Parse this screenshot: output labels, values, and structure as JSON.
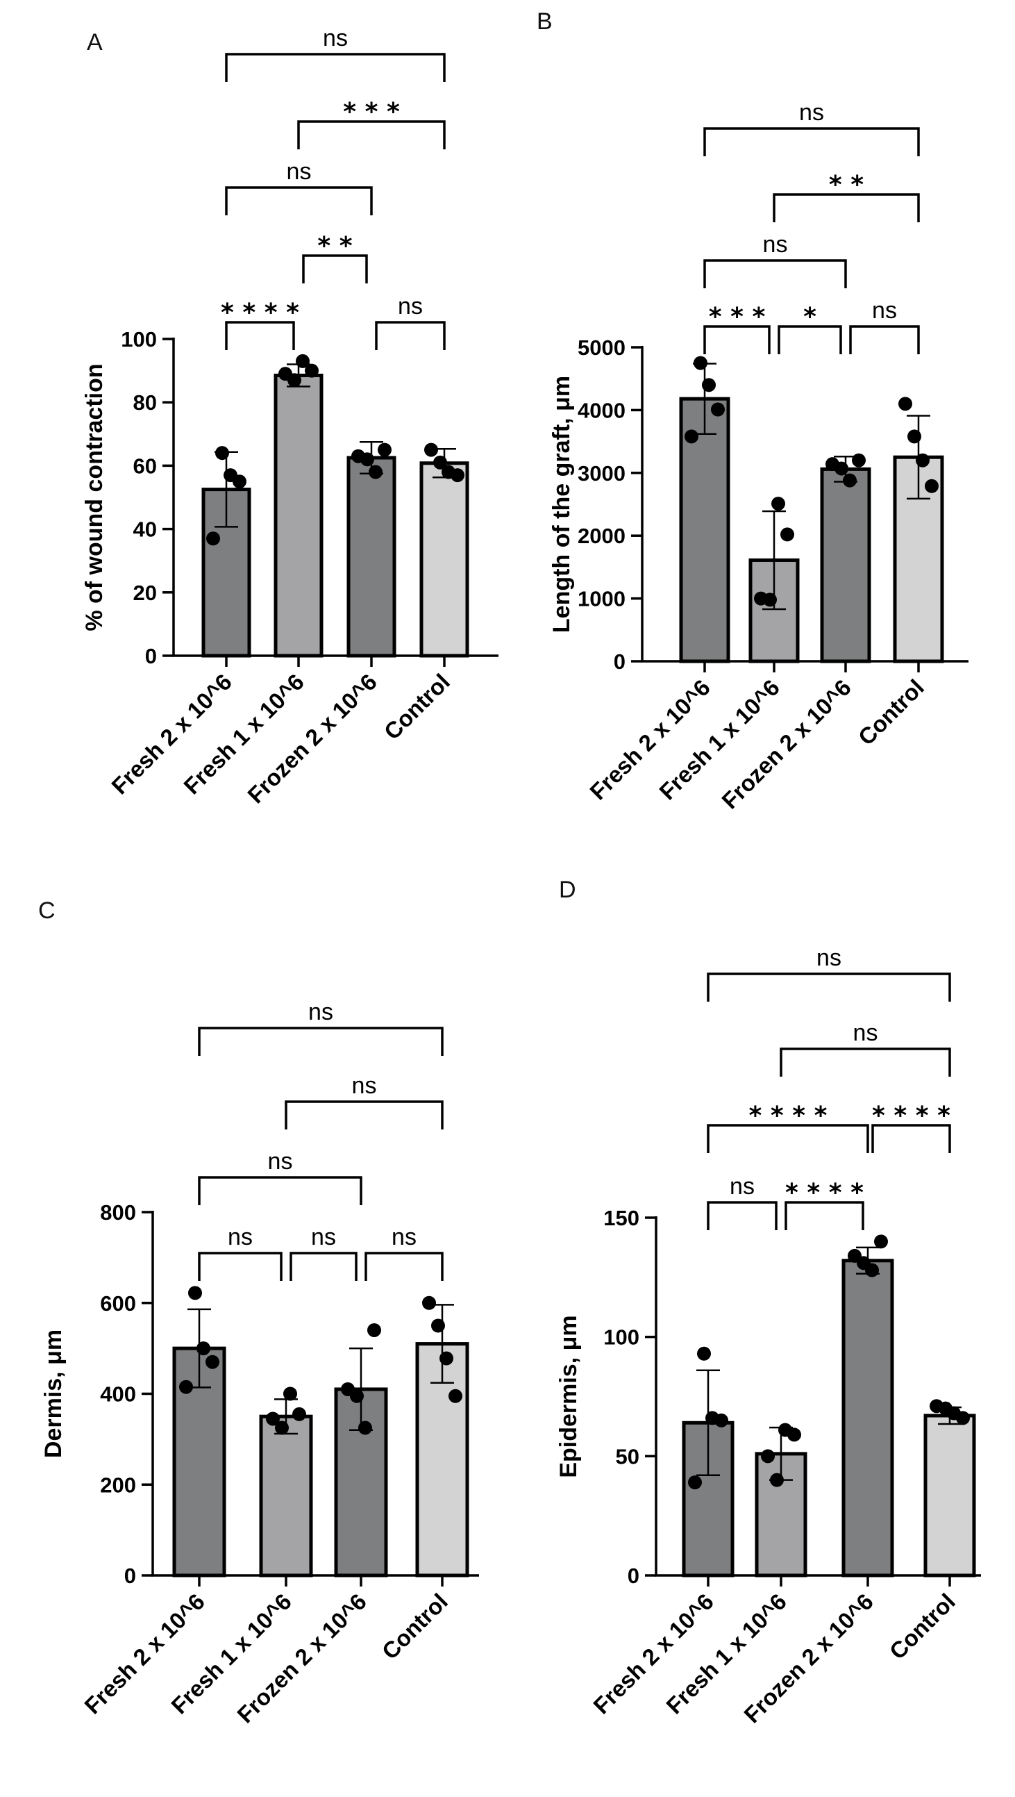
{
  "chart_data": [
    {
      "panel": "A",
      "type": "bar",
      "categories": [
        "Fresh 2 x 10^6",
        "Fresh 1 x 10^6",
        "Frozen 2 x 10^6",
        "Control"
      ],
      "values": [
        52.5,
        88.5,
        62.5,
        60.8
      ],
      "errors": [
        11.8,
        3.5,
        5.0,
        4.5
      ],
      "points": [
        [
          37,
          55,
          57,
          64
        ],
        [
          87,
          89,
          90,
          93
        ],
        [
          58,
          62,
          63,
          65
        ],
        [
          57,
          58,
          61,
          65
        ]
      ],
      "bar_colors": [
        "#7e7f80",
        "#a4a4a7",
        "#7e7f80",
        "#d3d3d3"
      ],
      "ylabel": "% of wound contraction",
      "ylim": [
        0,
        100
      ],
      "yticks": [
        0,
        20,
        40,
        60,
        80,
        100
      ],
      "comparisons": [
        {
          "from": 0,
          "to": 3,
          "label": "ns"
        },
        {
          "from": 1,
          "to": 3,
          "label": "***"
        },
        {
          "from": 0,
          "to": 2,
          "label": "ns"
        },
        {
          "from": 1,
          "to": 2,
          "label": "**"
        },
        {
          "from": 0,
          "to": 1,
          "label": "****"
        },
        {
          "from": 2,
          "to": 3,
          "label": "ns"
        }
      ]
    },
    {
      "panel": "B",
      "type": "bar",
      "categories": [
        "Fresh 2 x 10^6",
        "Fresh 1 x 10^6",
        "Frozen 2 x 10^6",
        "Control"
      ],
      "values": [
        4180,
        1610,
        3060,
        3250
      ],
      "errors": [
        560,
        780,
        200,
        660
      ],
      "points": [
        [
          3580,
          4010,
          4400,
          4750
        ],
        [
          980,
          1000,
          2020,
          2510
        ],
        [
          2880,
          3070,
          3140,
          3200
        ],
        [
          2790,
          3200,
          3580,
          4100
        ]
      ],
      "bar_colors": [
        "#7e7f80",
        "#a4a4a7",
        "#7e7f80",
        "#d3d3d3"
      ],
      "ylabel": "Length of the graft, μm",
      "ylim": [
        0,
        5000
      ],
      "yticks": [
        0,
        1000,
        2000,
        3000,
        4000,
        5000
      ],
      "comparisons": [
        {
          "from": 0,
          "to": 3,
          "label": "ns"
        },
        {
          "from": 1,
          "to": 3,
          "label": "**"
        },
        {
          "from": 0,
          "to": 2,
          "label": "ns"
        },
        {
          "from": 0,
          "to": 1,
          "label": "***"
        },
        {
          "from": 1,
          "to": 2,
          "label": "*"
        },
        {
          "from": 2,
          "to": 3,
          "label": "ns"
        }
      ]
    },
    {
      "panel": "C",
      "type": "bar",
      "categories": [
        "Fresh 2 x 10^6",
        "Fresh 1 x 10^6",
        "Frozen 2 x 10^6",
        "Control"
      ],
      "values": [
        500,
        350,
        410,
        510
      ],
      "errors": [
        86,
        38,
        90,
        86
      ],
      "points": [
        [
          415,
          470,
          500,
          622
        ],
        [
          325,
          345,
          355,
          400
        ],
        [
          325,
          395,
          410,
          540
        ],
        [
          395,
          478,
          550,
          600
        ]
      ],
      "bar_colors": [
        "#7e7f80",
        "#a4a4a7",
        "#7e7f80",
        "#d3d3d3"
      ],
      "ylabel": "Dermis, μm",
      "ylim": [
        0,
        800
      ],
      "yticks": [
        0,
        200,
        400,
        600,
        800
      ],
      "comparisons": [
        {
          "from": 0,
          "to": 3,
          "label": "ns"
        },
        {
          "from": 1,
          "to": 3,
          "label": "ns"
        },
        {
          "from": 0,
          "to": 2,
          "label": "ns"
        },
        {
          "from": 0,
          "to": 1,
          "label": "ns"
        },
        {
          "from": 1,
          "to": 2,
          "label": "ns"
        },
        {
          "from": 2,
          "to": 3,
          "label": "ns"
        }
      ]
    },
    {
      "panel": "D",
      "type": "bar",
      "categories": [
        "Fresh 2 x 10^6",
        "Fresh 1 x 10^6",
        "Frozen 2 x 10^6",
        "Control"
      ],
      "values": [
        64,
        51,
        132,
        67
      ],
      "errors": [
        22,
        11,
        5.5,
        3.5
      ],
      "points": [
        [
          39,
          65,
          66,
          93
        ],
        [
          40,
          50,
          59,
          61
        ],
        [
          128,
          131,
          134,
          140
        ],
        [
          66,
          68,
          70,
          71
        ]
      ],
      "bar_colors": [
        "#7e7f80",
        "#a4a4a7",
        "#7e7f80",
        "#d3d3d3"
      ],
      "ylabel": "Epidermis, μm",
      "ylim": [
        0,
        150
      ],
      "yticks": [
        0,
        50,
        100,
        150
      ],
      "comparisons": [
        {
          "from": 0,
          "to": 3,
          "label": "ns"
        },
        {
          "from": 1,
          "to": 3,
          "label": "ns"
        },
        {
          "from": 0,
          "to": 2,
          "label": "****"
        },
        {
          "from": 2,
          "to": 3,
          "label": "****"
        },
        {
          "from": 0,
          "to": 1,
          "label": "ns"
        },
        {
          "from": 1,
          "to": 2,
          "label": "****"
        }
      ]
    }
  ]
}
